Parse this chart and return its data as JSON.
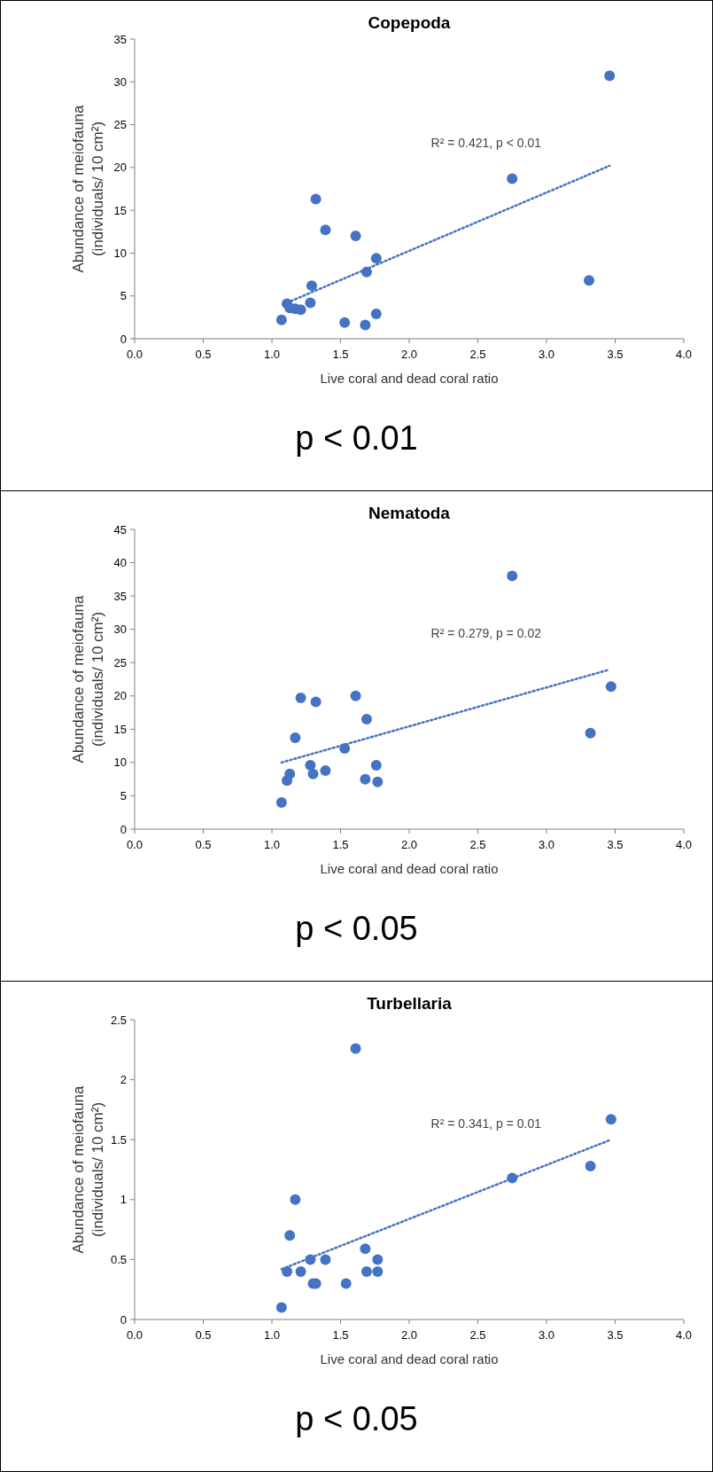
{
  "chart_data": [
    {
      "type": "scatter",
      "title": "Copepoda",
      "xlabel": "Live coral and dead coral ratio",
      "ylabel": "Abundance of meiofauna\n(individuals/ 10 cm²)",
      "xlim": [
        0,
        4
      ],
      "ylim": [
        0,
        35
      ],
      "xticks": [
        {
          "value": 0,
          "label": "0.0"
        },
        {
          "value": 0.5,
          "label": "0.5"
        },
        {
          "value": 1,
          "label": "1.0"
        },
        {
          "value": 1.5,
          "label": "1.5"
        },
        {
          "value": 2,
          "label": "2.0"
        },
        {
          "value": 2.5,
          "label": "2.5"
        },
        {
          "value": 3,
          "label": "3.0"
        },
        {
          "value": 3.5,
          "label": "3.5"
        },
        {
          "value": 4,
          "label": "4.0"
        }
      ],
      "yticks": [
        0,
        5,
        10,
        15,
        20,
        25,
        30,
        35
      ],
      "grid": false,
      "series": [
        {
          "color": "#4472c4",
          "marker": "circle",
          "x": [
            1.07,
            1.11,
            1.13,
            1.17,
            1.21,
            1.28,
            1.29,
            1.32,
            1.39,
            1.53,
            1.61,
            1.68,
            1.69,
            1.76,
            1.76,
            2.75,
            3.31,
            3.46
          ],
          "values": [
            2.2,
            4.1,
            3.6,
            3.5,
            3.4,
            4.2,
            6.2,
            16.3,
            12.7,
            1.9,
            12.0,
            1.6,
            7.8,
            9.4,
            2.9,
            18.7,
            6.8,
            30.7
          ]
        },
        {
          "type": "line",
          "color": "#4472c4",
          "marker": "none",
          "line_style": "dotted",
          "x": [
            1.08,
            3.46
          ],
          "values": [
            4.0,
            20.2
          ]
        }
      ],
      "annotations": [
        "R² = 0.421, p < 0.01",
        "p < 0.01"
      ]
    },
    {
      "type": "scatter",
      "title": "Nematoda",
      "xlabel": "Live coral and dead coral ratio",
      "ylabel": "Abundance of meiofauna\n(individuals/ 10 cm²)",
      "xlim": [
        0,
        4
      ],
      "ylim": [
        0,
        45
      ],
      "xticks": [
        {
          "value": 0,
          "label": "0.0"
        },
        {
          "value": 0.5,
          "label": "0.5"
        },
        {
          "value": 1,
          "label": "1.0"
        },
        {
          "value": 1.5,
          "label": "1.5"
        },
        {
          "value": 2,
          "label": "2.0"
        },
        {
          "value": 2.5,
          "label": "2.5"
        },
        {
          "value": 3,
          "label": "3.0"
        },
        {
          "value": 3.5,
          "label": "3.5"
        },
        {
          "value": 4,
          "label": "4.0"
        }
      ],
      "yticks": [
        0,
        5,
        10,
        15,
        20,
        25,
        30,
        35,
        40,
        45
      ],
      "grid": false,
      "series": [
        {
          "color": "#4472c4",
          "marker": "circle",
          "x": [
            1.07,
            1.11,
            1.13,
            1.17,
            1.21,
            1.28,
            1.3,
            1.32,
            1.39,
            1.53,
            1.61,
            1.68,
            1.69,
            1.76,
            1.77,
            2.75,
            3.32,
            3.47
          ],
          "values": [
            4.0,
            7.3,
            8.3,
            13.7,
            19.7,
            9.6,
            8.3,
            19.1,
            8.8,
            12.1,
            20.0,
            7.5,
            16.5,
            9.6,
            7.1,
            38.0,
            14.4,
            21.4
          ]
        },
        {
          "type": "line",
          "color": "#4472c4",
          "marker": "none",
          "line_style": "dotted",
          "x": [
            1.07,
            3.45
          ],
          "values": [
            10.0,
            23.9
          ]
        }
      ],
      "annotations": [
        "R² = 0.279, p = 0.02",
        "p < 0.05"
      ]
    },
    {
      "type": "scatter",
      "title": "Turbellaria",
      "xlabel": "Live coral and dead coral ratio",
      "ylabel": "Abundance of meiofauna\n(individuals/ 10 cm²)",
      "xlim": [
        0,
        4
      ],
      "ylim": [
        0,
        2.5
      ],
      "xticks": [
        {
          "value": 0,
          "label": "0.0"
        },
        {
          "value": 0.5,
          "label": "0.5"
        },
        {
          "value": 1,
          "label": "1.0"
        },
        {
          "value": 1.5,
          "label": "1.5"
        },
        {
          "value": 2,
          "label": "2.0"
        },
        {
          "value": 2.5,
          "label": "2.5"
        },
        {
          "value": 3,
          "label": "3.0"
        },
        {
          "value": 3.5,
          "label": "3.5"
        },
        {
          "value": 4,
          "label": "4.0"
        }
      ],
      "yticks": [
        0,
        0.5,
        1,
        1.5,
        2,
        2.5
      ],
      "grid": false,
      "series": [
        {
          "color": "#4472c4",
          "marker": "circle",
          "x": [
            1.07,
            1.11,
            1.13,
            1.17,
            1.21,
            1.28,
            1.3,
            1.32,
            1.39,
            1.54,
            1.61,
            1.68,
            1.69,
            1.77,
            1.77,
            2.75,
            3.32,
            3.47
          ],
          "values": [
            0.1,
            0.4,
            0.7,
            1.0,
            0.4,
            0.5,
            0.3,
            0.3,
            0.5,
            0.3,
            2.26,
            0.59,
            0.4,
            0.5,
            0.4,
            1.18,
            1.28,
            1.67
          ]
        },
        {
          "type": "line",
          "color": "#4472c4",
          "marker": "none",
          "line_style": "dotted",
          "x": [
            1.07,
            3.47
          ],
          "values": [
            0.42,
            1.5
          ]
        }
      ],
      "annotations": [
        "R² = 0.341, p = 0.01",
        "p < 0.05"
      ]
    }
  ]
}
